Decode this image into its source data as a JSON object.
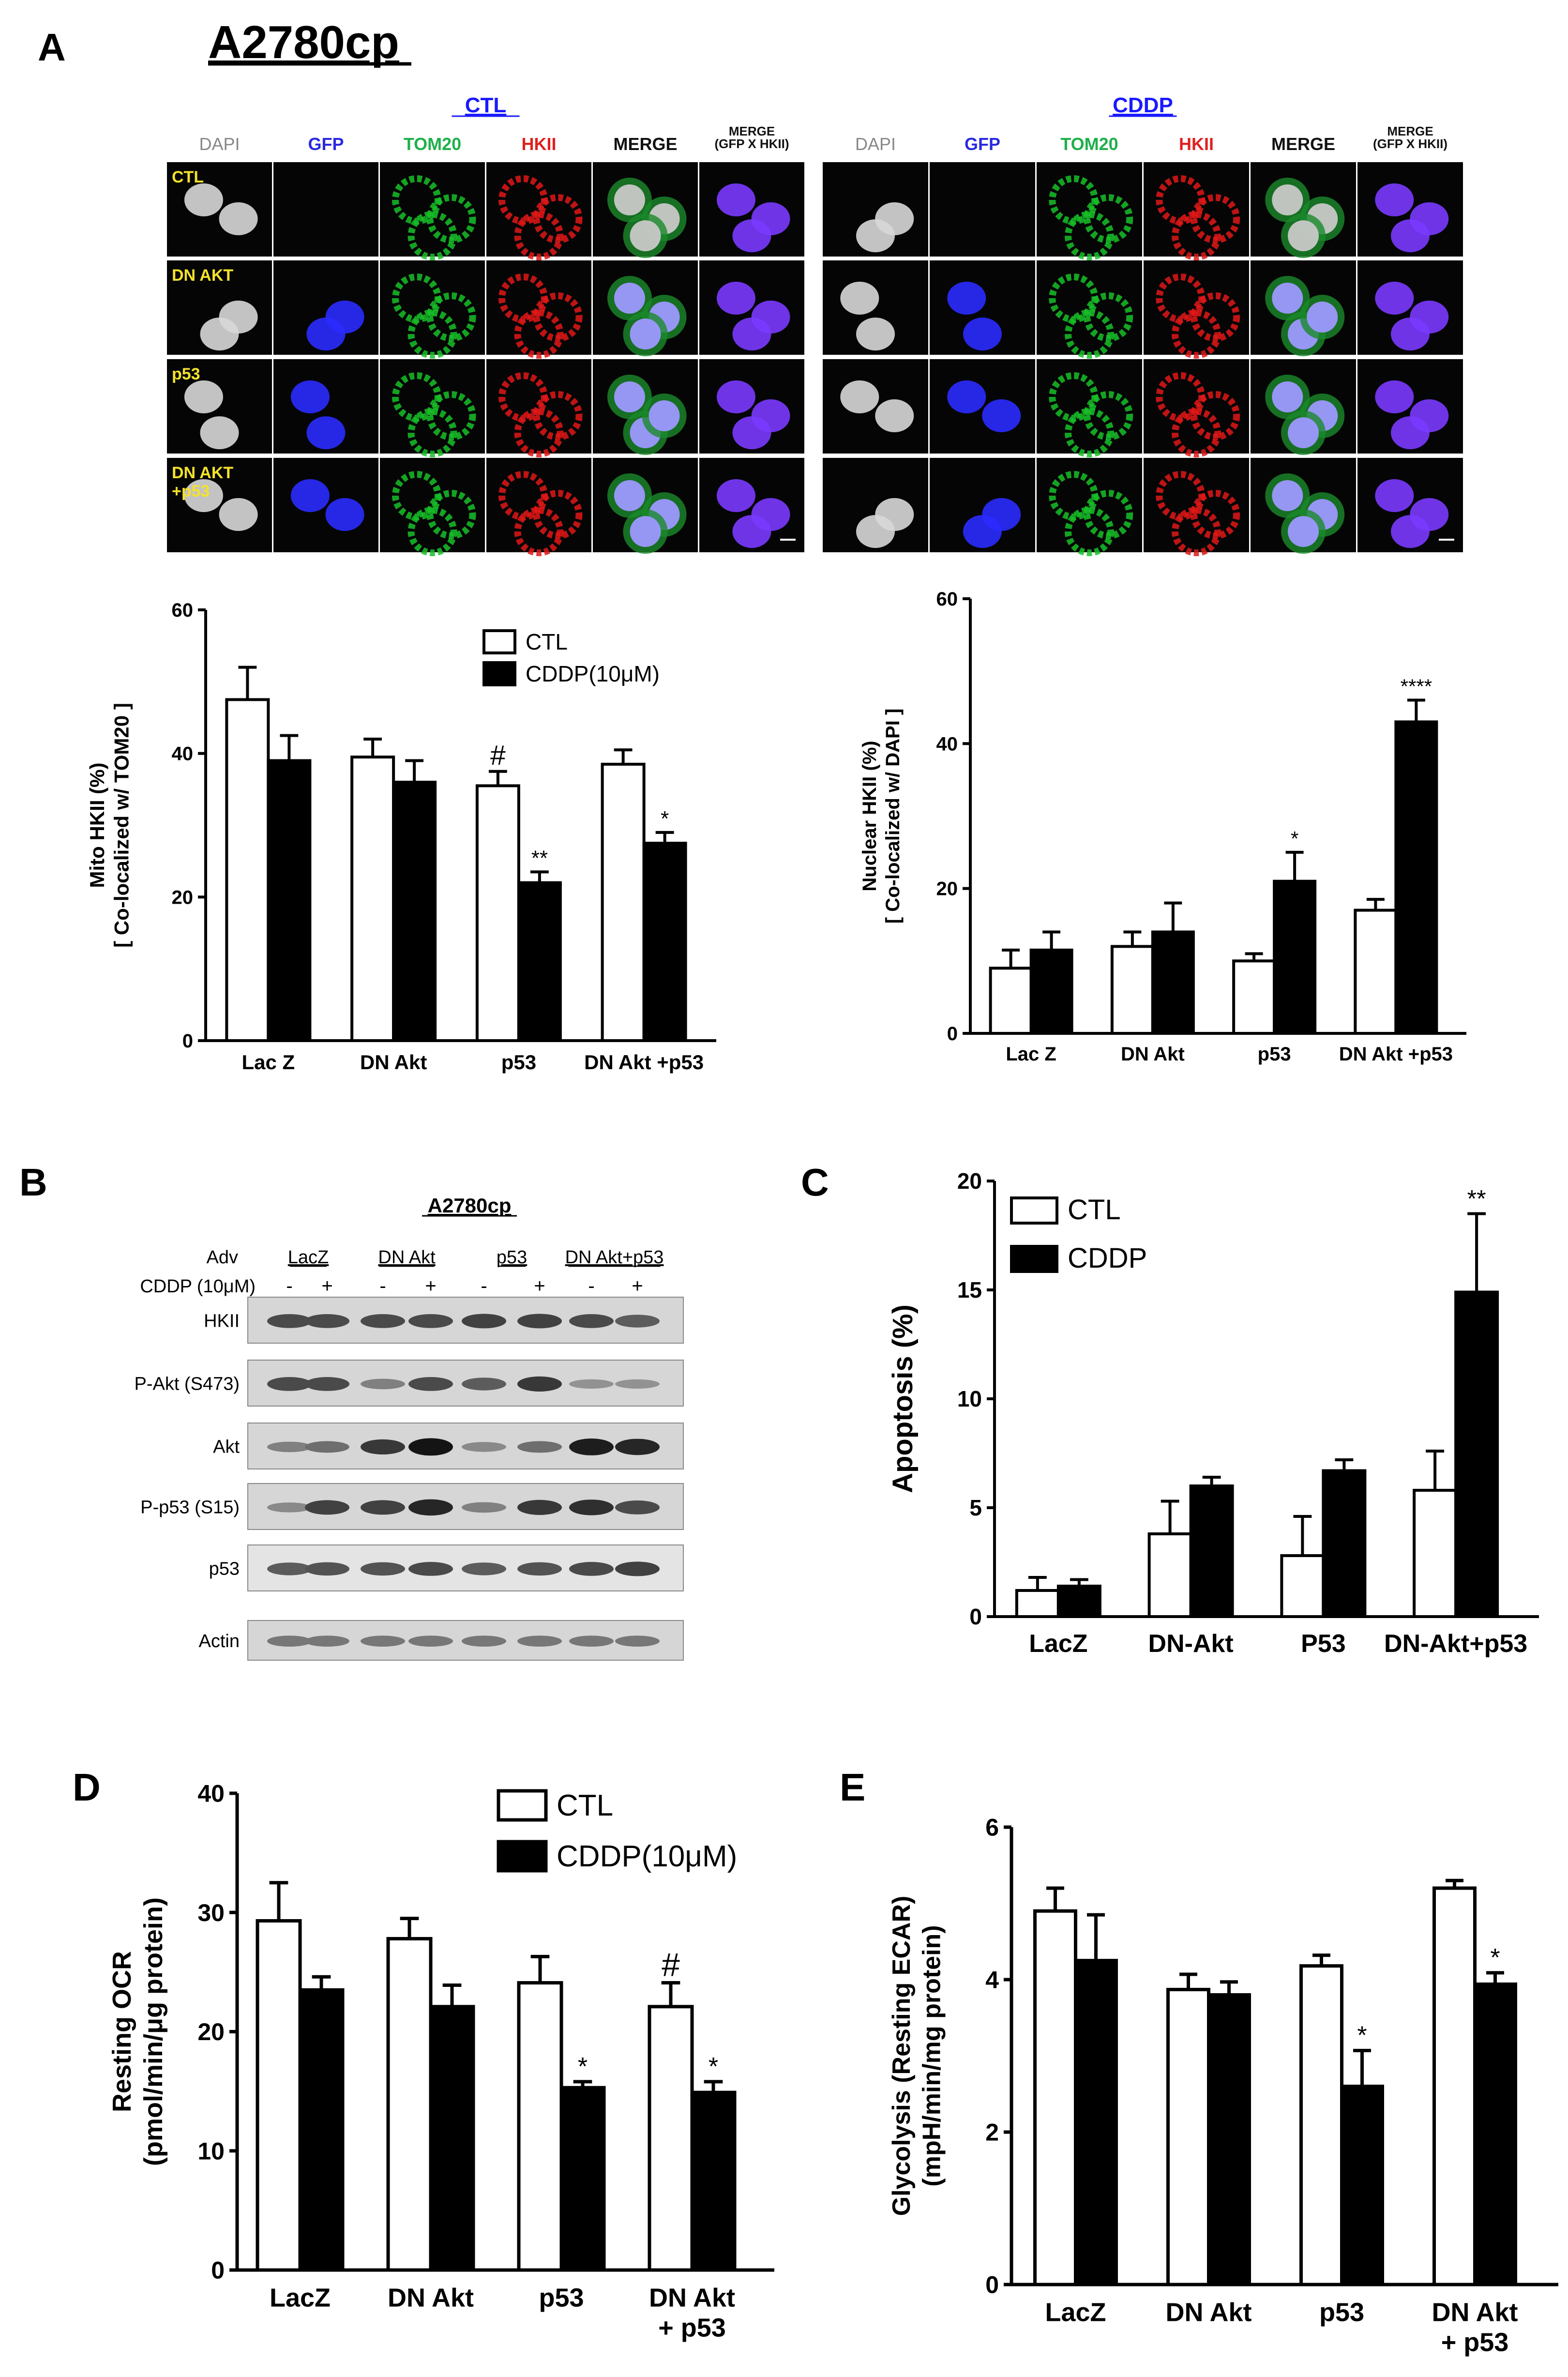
{
  "panel_labels": [
    "A",
    "B",
    "C",
    "D",
    "E"
  ],
  "panelA": {
    "cell_line": "A2780cp",
    "groups": [
      {
        "title": "CTL",
        "channels": [
          "DAPI",
          "GFP",
          "TOM20",
          "HKII",
          "MERGE",
          "MERGE\n(GFP X HKII)"
        ]
      },
      {
        "title": "CDDP",
        "channels": [
          "DAPI",
          "GFP",
          "TOM20",
          "HKII",
          "MERGE",
          "MERGE\n(GFP X HKII)"
        ]
      }
    ],
    "row_labels": [
      "CTL",
      "DN AKT",
      "p53",
      "DN AKT\n+p53"
    ],
    "channel_colors": [
      "#888888",
      "#2a2ae0",
      "#1fb04a",
      "#e02020",
      "#111111",
      "#111111"
    ],
    "cell_colors": [
      "#d8d8d8",
      "#2b2bff",
      "#18c028",
      "#e01818",
      "#b8b4ff",
      "#7a3aff"
    ]
  },
  "chart_data": [
    {
      "id": "A-mito",
      "type": "bar",
      "categories": [
        "Lac Z",
        "DN Akt",
        "p53",
        "DN Akt +p53"
      ],
      "series": [
        {
          "name": "CTL",
          "values": [
            47.5,
            39.5,
            35.5,
            38.5
          ],
          "errors": [
            4.5,
            2.5,
            2.0,
            2.0
          ]
        },
        {
          "name": "CDDP(10μM)",
          "values": [
            39.0,
            36.0,
            22.0,
            27.5
          ],
          "errors": [
            3.5,
            3.0,
            1.5,
            1.5
          ]
        }
      ],
      "annotations": [
        {
          "series": 0,
          "index": 2,
          "text": "#"
        },
        {
          "series": 1,
          "index": 2,
          "text": "**"
        },
        {
          "series": 1,
          "index": 3,
          "text": "*"
        }
      ],
      "ylabel": [
        "Mito HKII (%)",
        "[ Co-localized w/ TOM20 ]"
      ],
      "ylim": [
        0,
        60
      ],
      "yticks": [
        0,
        20,
        40,
        60
      ],
      "legend": "top-right"
    },
    {
      "id": "A-nuclear",
      "type": "bar",
      "categories": [
        "Lac Z",
        "DN Akt",
        "p53",
        "DN Akt +p53"
      ],
      "series": [
        {
          "name": "CTL",
          "values": [
            9.0,
            12.0,
            10.0,
            17.0
          ],
          "errors": [
            2.5,
            2.0,
            1.0,
            1.5
          ]
        },
        {
          "name": "CDDP",
          "values": [
            11.5,
            14.0,
            21.0,
            43.0
          ],
          "errors": [
            2.5,
            4.0,
            4.0,
            3.0
          ]
        }
      ],
      "annotations": [
        {
          "series": 1,
          "index": 2,
          "text": "*"
        },
        {
          "series": 1,
          "index": 3,
          "text": "****"
        }
      ],
      "ylabel": [
        "Nuclear HKII (%)",
        "[ Co-localized w/ DAPI ]"
      ],
      "ylim": [
        0,
        60
      ],
      "yticks": [
        0,
        20,
        40,
        60
      ],
      "legend": "none"
    },
    {
      "id": "C-apoptosis",
      "type": "bar",
      "categories": [
        "LacZ",
        "DN-Akt",
        "P53",
        "DN-Akt+p53"
      ],
      "series": [
        {
          "name": "CTL",
          "values": [
            1.2,
            3.8,
            2.8,
            5.8
          ],
          "errors": [
            0.6,
            1.5,
            1.8,
            1.8
          ]
        },
        {
          "name": "CDDP",
          "values": [
            1.4,
            6.0,
            6.7,
            14.9
          ],
          "errors": [
            0.3,
            0.4,
            0.5,
            3.6
          ]
        }
      ],
      "annotations": [
        {
          "series": 1,
          "index": 3,
          "text": "**"
        }
      ],
      "ylabel": [
        "Apoptosis (%)"
      ],
      "ylim": [
        0,
        20
      ],
      "yticks": [
        0,
        5,
        10,
        15,
        20
      ],
      "legend": "top-left"
    },
    {
      "id": "D-ocr",
      "type": "bar",
      "categories": [
        "LacZ",
        "DN Akt",
        "p53",
        "DN Akt\n+ p53"
      ],
      "series": [
        {
          "name": "CTL",
          "values": [
            29.3,
            27.8,
            24.1,
            22.1
          ],
          "errors": [
            3.2,
            1.7,
            2.2,
            2.0
          ]
        },
        {
          "name": "CDDP(10μM)",
          "values": [
            23.5,
            22.1,
            15.3,
            14.9
          ],
          "errors": [
            1.1,
            1.8,
            0.5,
            0.9
          ]
        }
      ],
      "annotations": [
        {
          "series": 0,
          "index": 3,
          "text": "#"
        },
        {
          "series": 1,
          "index": 2,
          "text": "*"
        },
        {
          "series": 1,
          "index": 3,
          "text": "*"
        }
      ],
      "ylabel": [
        "Resting OCR",
        "(pmol/min/μg protein)"
      ],
      "ylim": [
        0,
        40
      ],
      "yticks": [
        0,
        10,
        20,
        30,
        40
      ],
      "legend": "top-right"
    },
    {
      "id": "E-ecar",
      "type": "bar",
      "categories": [
        "LacZ",
        "DN Akt",
        "p53",
        "DN Akt\n+ p53"
      ],
      "series": [
        {
          "name": "CTL",
          "values": [
            4.9,
            3.87,
            4.18,
            5.2
          ],
          "errors": [
            0.3,
            0.2,
            0.14,
            0.1
          ]
        },
        {
          "name": "CDDP",
          "values": [
            4.25,
            3.8,
            2.6,
            3.94
          ],
          "errors": [
            0.6,
            0.17,
            0.47,
            0.15
          ]
        }
      ],
      "annotations": [
        {
          "series": 1,
          "index": 2,
          "text": "*"
        },
        {
          "series": 1,
          "index": 3,
          "text": "*"
        }
      ],
      "ylabel": [
        "Glycolysis (Resting ECAR)",
        "(mpH/min/mg protein)"
      ],
      "ylim": [
        0,
        6
      ],
      "yticks": [
        0,
        2,
        4,
        6
      ],
      "legend": "none"
    }
  ],
  "panelB": {
    "title": "A2780cp",
    "adv_label": "Adv",
    "cddp_label": "CDDP (10μM)",
    "groups": [
      "LacZ",
      "DN Akt",
      "p53",
      "DN Akt+p53"
    ],
    "signs": [
      "-",
      "+",
      "-",
      "+",
      "-",
      "+",
      "-",
      "+"
    ],
    "blots": [
      {
        "label": "HKII",
        "intensity": [
          0.7,
          0.7,
          0.7,
          0.7,
          0.75,
          0.75,
          0.7,
          0.6
        ]
      },
      {
        "label": "P-Akt (S473)",
        "intensity": [
          0.7,
          0.7,
          0.4,
          0.7,
          0.6,
          0.8,
          0.3,
          0.3
        ]
      },
      {
        "label": "Akt",
        "intensity": [
          0.4,
          0.5,
          0.8,
          1.0,
          0.35,
          0.5,
          0.95,
          0.9
        ]
      },
      {
        "label": "P-p53 (S15)",
        "intensity": [
          0.35,
          0.75,
          0.75,
          0.9,
          0.4,
          0.8,
          0.85,
          0.7
        ]
      },
      {
        "label": "p53",
        "intensity": [
          0.6,
          0.65,
          0.65,
          0.7,
          0.6,
          0.65,
          0.7,
          0.75
        ]
      },
      {
        "label": "Actin",
        "intensity": [
          0.45,
          0.45,
          0.45,
          0.45,
          0.45,
          0.45,
          0.45,
          0.45
        ]
      }
    ]
  }
}
